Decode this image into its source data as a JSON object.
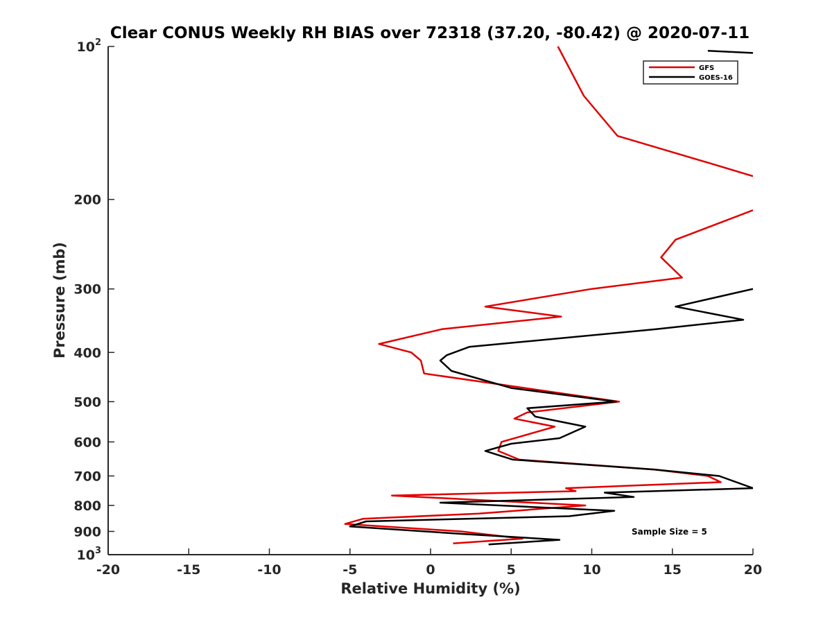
{
  "chart_data": {
    "type": "line",
    "title": "Clear CONUS Weekly RH BIAS over 72318 (37.20, -80.42) @ 2020-07-11",
    "xlabel": "Relative Humidity (%)",
    "ylabel": "Pressure (mb)",
    "xlim": [
      -20,
      20
    ],
    "ylim": [
      100,
      1000
    ],
    "y_scale": "log",
    "y_reversed": true,
    "grid": false,
    "legend_position": "top-right",
    "x_ticks": [
      "-20",
      "-15",
      "-10",
      "-5",
      "0",
      "5",
      "10",
      "15",
      "20"
    ],
    "y_ticks": [
      {
        "value": 100,
        "base": "10",
        "exp": "2"
      },
      {
        "value": 200,
        "label": "200"
      },
      {
        "value": 300,
        "label": "300"
      },
      {
        "value": 400,
        "label": "400"
      },
      {
        "value": 500,
        "label": "500"
      },
      {
        "value": 600,
        "label": "600"
      },
      {
        "value": 700,
        "label": "700"
      },
      {
        "value": 800,
        "label": "800"
      },
      {
        "value": 900,
        "label": "900"
      },
      {
        "value": 1000,
        "base": "10",
        "exp": "3"
      }
    ],
    "annotation": "Sample Size = 5",
    "series": [
      {
        "name": "GFS",
        "color": "#e00000",
        "points": [
          {
            "x": 7.9,
            "y": 100
          },
          {
            "x": 9.5,
            "y": 125
          },
          {
            "x": 11.6,
            "y": 150
          },
          {
            "x": 17.4,
            "y": 170
          },
          {
            "x": 20,
            "y": 180
          },
          {
            "x": null,
            "y": null
          },
          {
            "x": 20,
            "y": 210
          },
          {
            "x": 15.2,
            "y": 240
          },
          {
            "x": 14.3,
            "y": 260
          },
          {
            "x": 15.6,
            "y": 285
          },
          {
            "x": 10,
            "y": 300
          },
          {
            "x": 3.4,
            "y": 325
          },
          {
            "x": 8.1,
            "y": 340
          },
          {
            "x": 0.7,
            "y": 360
          },
          {
            "x": -3.2,
            "y": 385
          },
          {
            "x": -1.2,
            "y": 400
          },
          {
            "x": -0.6,
            "y": 415
          },
          {
            "x": -0.4,
            "y": 440
          },
          {
            "x": 11.7,
            "y": 500
          },
          {
            "x": 6.0,
            "y": 525
          },
          {
            "x": 5.2,
            "y": 540
          },
          {
            "x": 7.7,
            "y": 560
          },
          {
            "x": 4.4,
            "y": 600
          },
          {
            "x": 4.2,
            "y": 625
          },
          {
            "x": 5.5,
            "y": 650
          },
          {
            "x": 13.9,
            "y": 680
          },
          {
            "x": 17.2,
            "y": 700
          },
          {
            "x": 18.0,
            "y": 720
          },
          {
            "x": 8.4,
            "y": 740
          },
          {
            "x": 9.0,
            "y": 750
          },
          {
            "x": -2.4,
            "y": 765
          },
          {
            "x": 9.6,
            "y": 800
          },
          {
            "x": 3.0,
            "y": 830
          },
          {
            "x": -4.2,
            "y": 850
          },
          {
            "x": -5.3,
            "y": 870
          },
          {
            "x": 1.9,
            "y": 900
          },
          {
            "x": 5.7,
            "y": 930
          },
          {
            "x": 1.4,
            "y": 950
          }
        ]
      },
      {
        "name": "GOES-16",
        "color": "#000000",
        "points": [
          {
            "x": 17.2,
            "y": 102
          },
          {
            "x": 20,
            "y": 103
          },
          {
            "x": null,
            "y": null
          },
          {
            "x": 20,
            "y": 300
          },
          {
            "x": 19.0,
            "y": 305
          },
          {
            "x": 15.2,
            "y": 325
          },
          {
            "x": 19.4,
            "y": 345
          },
          {
            "x": 14.0,
            "y": 360
          },
          {
            "x": 2.4,
            "y": 390
          },
          {
            "x": 1.0,
            "y": 405
          },
          {
            "x": 0.6,
            "y": 415
          },
          {
            "x": 1.3,
            "y": 435
          },
          {
            "x": 5.0,
            "y": 470
          },
          {
            "x": 11.5,
            "y": 500
          },
          {
            "x": 6.0,
            "y": 515
          },
          {
            "x": 6.5,
            "y": 535
          },
          {
            "x": 9.6,
            "y": 560
          },
          {
            "x": 8.0,
            "y": 590
          },
          {
            "x": 5.0,
            "y": 605
          },
          {
            "x": 3.4,
            "y": 625
          },
          {
            "x": 5.1,
            "y": 650
          },
          {
            "x": 13.9,
            "y": 680
          },
          {
            "x": 17.9,
            "y": 700
          },
          {
            "x": 20,
            "y": 740
          },
          {
            "x": 10.8,
            "y": 755
          },
          {
            "x": 12.6,
            "y": 770
          },
          {
            "x": 0.6,
            "y": 790
          },
          {
            "x": 11.4,
            "y": 820
          },
          {
            "x": 8.6,
            "y": 840
          },
          {
            "x": -4.0,
            "y": 860
          },
          {
            "x": -5.0,
            "y": 880
          },
          {
            "x": 1.9,
            "y": 910
          },
          {
            "x": 8.0,
            "y": 935
          },
          {
            "x": 3.6,
            "y": 955
          }
        ]
      }
    ]
  }
}
